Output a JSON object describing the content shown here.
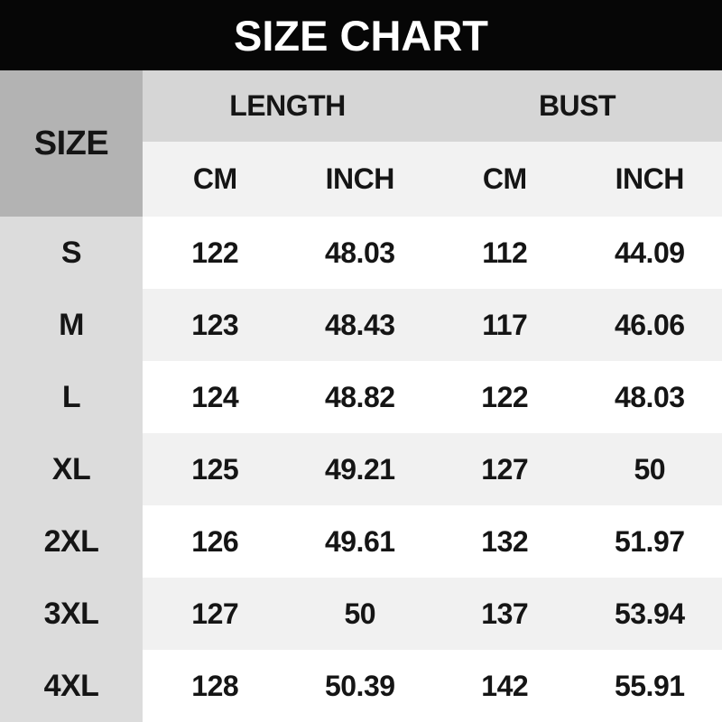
{
  "title": "SIZE CHART",
  "table": {
    "size_header": "SIZE",
    "groups": [
      {
        "label": "LENGTH"
      },
      {
        "label": "BUST"
      }
    ],
    "unit_headers": [
      "CM",
      "INCH",
      "CM",
      "INCH"
    ],
    "rows": [
      {
        "size": "S",
        "values": [
          "122",
          "48.03",
          "112",
          "44.09"
        ]
      },
      {
        "size": "M",
        "values": [
          "123",
          "48.43",
          "117",
          "46.06"
        ]
      },
      {
        "size": "L",
        "values": [
          "124",
          "48.82",
          "122",
          "48.03"
        ]
      },
      {
        "size": "XL",
        "values": [
          "125",
          "49.21",
          "127",
          "50"
        ]
      },
      {
        "size": "2XL",
        "values": [
          "126",
          "49.61",
          "132",
          "51.97"
        ]
      },
      {
        "size": "3XL",
        "values": [
          "127",
          "50",
          "137",
          "53.94"
        ]
      },
      {
        "size": "4XL",
        "values": [
          "128",
          "50.39",
          "142",
          "55.91"
        ]
      }
    ]
  },
  "colors": {
    "banner_bg": "#060606",
    "banner_text": "#ffffff",
    "size_header_bg": "#b3b3b3",
    "group_band_bg": "#d6d6d6",
    "unit_band_bg": "#f2f2f2",
    "row_label_bg": "#dcdcdc",
    "row_stripe_light": "#f1f1f1",
    "row_stripe_white": "#ffffff",
    "text": "#151515"
  },
  "chart_data": {
    "type": "table",
    "title": "SIZE CHART",
    "columns": [
      "SIZE",
      "LENGTH CM",
      "LENGTH INCH",
      "BUST CM",
      "BUST INCH"
    ],
    "rows": [
      [
        "S",
        122,
        48.03,
        112,
        44.09
      ],
      [
        "M",
        123,
        48.43,
        117,
        46.06
      ],
      [
        "L",
        124,
        48.82,
        122,
        48.03
      ],
      [
        "XL",
        125,
        49.21,
        127,
        50
      ],
      [
        "2XL",
        126,
        49.61,
        132,
        51.97
      ],
      [
        "3XL",
        127,
        50,
        137,
        53.94
      ],
      [
        "4XL",
        128,
        50.39,
        142,
        55.91
      ]
    ]
  }
}
